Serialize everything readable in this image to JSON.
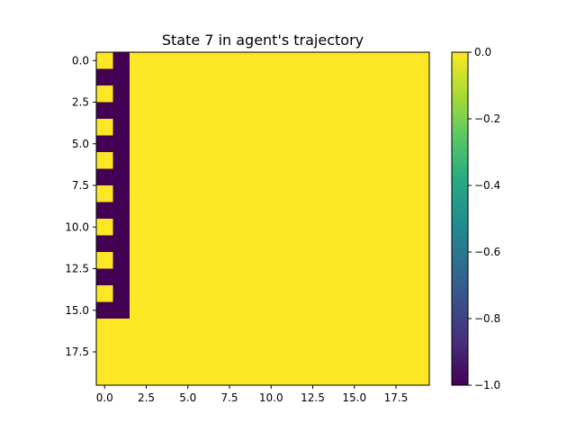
{
  "chart_data": {
    "type": "heatmap",
    "title": "State 7 in agent's trajectory",
    "xlabel": "",
    "ylabel": "",
    "rows": 20,
    "cols": 20,
    "value_range": [
      -1.0,
      0.0
    ],
    "default_value": 0.0,
    "colormap": "viridis",
    "nonzero_cells": [
      {
        "row": 0,
        "col": 1,
        "value": -1.0
      },
      {
        "row": 1,
        "col": 0,
        "value": -1.0
      },
      {
        "row": 1,
        "col": 1,
        "value": -1.0
      },
      {
        "row": 2,
        "col": 1,
        "value": -1.0
      },
      {
        "row": 3,
        "col": 0,
        "value": -1.0
      },
      {
        "row": 3,
        "col": 1,
        "value": -1.0
      },
      {
        "row": 4,
        "col": 1,
        "value": -1.0
      },
      {
        "row": 5,
        "col": 0,
        "value": -1.0
      },
      {
        "row": 5,
        "col": 1,
        "value": -1.0
      },
      {
        "row": 6,
        "col": 1,
        "value": -1.0
      },
      {
        "row": 7,
        "col": 0,
        "value": -1.0
      },
      {
        "row": 7,
        "col": 1,
        "value": -1.0
      },
      {
        "row": 8,
        "col": 1,
        "value": -1.0
      },
      {
        "row": 9,
        "col": 0,
        "value": -1.0
      },
      {
        "row": 9,
        "col": 1,
        "value": -1.0
      },
      {
        "row": 10,
        "col": 1,
        "value": -1.0
      },
      {
        "row": 11,
        "col": 0,
        "value": -1.0
      },
      {
        "row": 11,
        "col": 1,
        "value": -1.0
      },
      {
        "row": 12,
        "col": 1,
        "value": -1.0
      },
      {
        "row": 13,
        "col": 0,
        "value": -1.0
      },
      {
        "row": 13,
        "col": 1,
        "value": -1.0
      },
      {
        "row": 14,
        "col": 1,
        "value": -1.0
      },
      {
        "row": 15,
        "col": 0,
        "value": -1.0
      },
      {
        "row": 15,
        "col": 1,
        "value": -1.0
      }
    ],
    "x_ticks": [
      {
        "value": 0,
        "label": "0.0"
      },
      {
        "value": 2.5,
        "label": "2.5"
      },
      {
        "value": 5,
        "label": "5.0"
      },
      {
        "value": 7.5,
        "label": "7.5"
      },
      {
        "value": 10,
        "label": "10.0"
      },
      {
        "value": 12.5,
        "label": "12.5"
      },
      {
        "value": 15,
        "label": "15.0"
      },
      {
        "value": 17.5,
        "label": "17.5"
      }
    ],
    "y_ticks": [
      {
        "value": 0,
        "label": "0.0"
      },
      {
        "value": 2.5,
        "label": "2.5"
      },
      {
        "value": 5,
        "label": "5.0"
      },
      {
        "value": 7.5,
        "label": "7.5"
      },
      {
        "value": 10,
        "label": "10.0"
      },
      {
        "value": 12.5,
        "label": "12.5"
      },
      {
        "value": 15,
        "label": "15.0"
      },
      {
        "value": 17.5,
        "label": "17.5"
      }
    ],
    "colorbar_ticks": [
      {
        "value": 0.0,
        "label": "0.0"
      },
      {
        "value": -0.2,
        "label": "−0.2"
      },
      {
        "value": -0.4,
        "label": "−0.4"
      },
      {
        "value": -0.6,
        "label": "−0.6"
      },
      {
        "value": -0.8,
        "label": "−0.8"
      },
      {
        "value": -1.0,
        "label": "−1.0"
      }
    ],
    "grid": false,
    "colors": {
      "max": "#fde725",
      "min": "#440154"
    }
  }
}
